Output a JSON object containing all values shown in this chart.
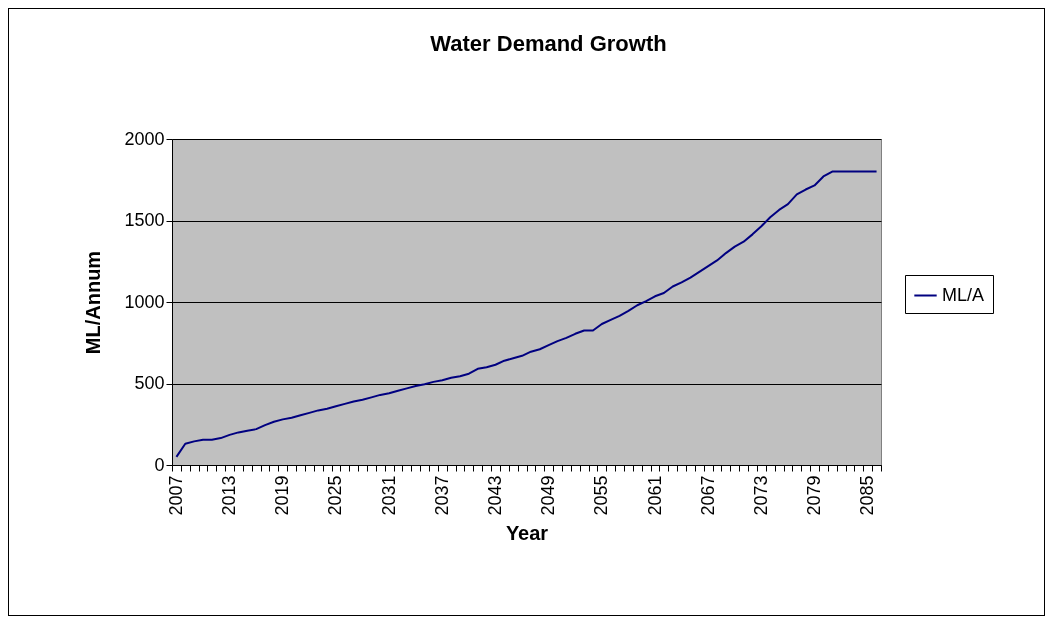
{
  "chart_data": {
    "type": "line",
    "title": "Water Demand Growth",
    "xlabel": "Year",
    "ylabel": "ML/Annum",
    "categories": [
      "2007",
      null,
      null,
      null,
      null,
      null,
      "2013",
      null,
      null,
      null,
      null,
      null,
      "2019",
      null,
      null,
      null,
      null,
      null,
      "2025",
      null,
      null,
      null,
      null,
      null,
      "2031",
      null,
      null,
      null,
      null,
      null,
      "2037",
      null,
      null,
      null,
      null,
      null,
      "2043",
      null,
      null,
      null,
      null,
      null,
      "2049",
      null,
      null,
      null,
      null,
      null,
      "2055",
      null,
      null,
      null,
      null,
      null,
      "2061",
      null,
      null,
      null,
      null,
      null,
      "2067",
      null,
      null,
      null,
      null,
      null,
      "2073",
      null,
      null,
      null,
      null,
      null,
      "2079",
      null,
      null,
      null,
      null,
      null,
      "2085",
      null
    ],
    "series": [
      {
        "name": "ML/A",
        "color": "#000080",
        "values": [
          50,
          130,
          145,
          155,
          155,
          165,
          185,
          200,
          210,
          220,
          245,
          265,
          280,
          290,
          305,
          320,
          335,
          345,
          360,
          375,
          390,
          400,
          415,
          430,
          440,
          455,
          470,
          485,
          495,
          510,
          520,
          535,
          545,
          560,
          590,
          600,
          615,
          640,
          655,
          670,
          695,
          710,
          735,
          760,
          780,
          805,
          825,
          825,
          865,
          890,
          915,
          945,
          980,
          1005,
          1035,
          1055,
          1095,
          1120,
          1150,
          1185,
          1220,
          1255,
          1300,
          1340,
          1370,
          1415,
          1465,
          1520,
          1565,
          1600,
          1660,
          1690,
          1715,
          1770,
          1800,
          1800,
          1800,
          1800,
          1800,
          1800
        ]
      }
    ],
    "ylim": [
      0,
      2000
    ],
    "yticks": [
      0,
      500,
      1000,
      1500,
      2000
    ],
    "grid": "y",
    "legend": "right"
  }
}
